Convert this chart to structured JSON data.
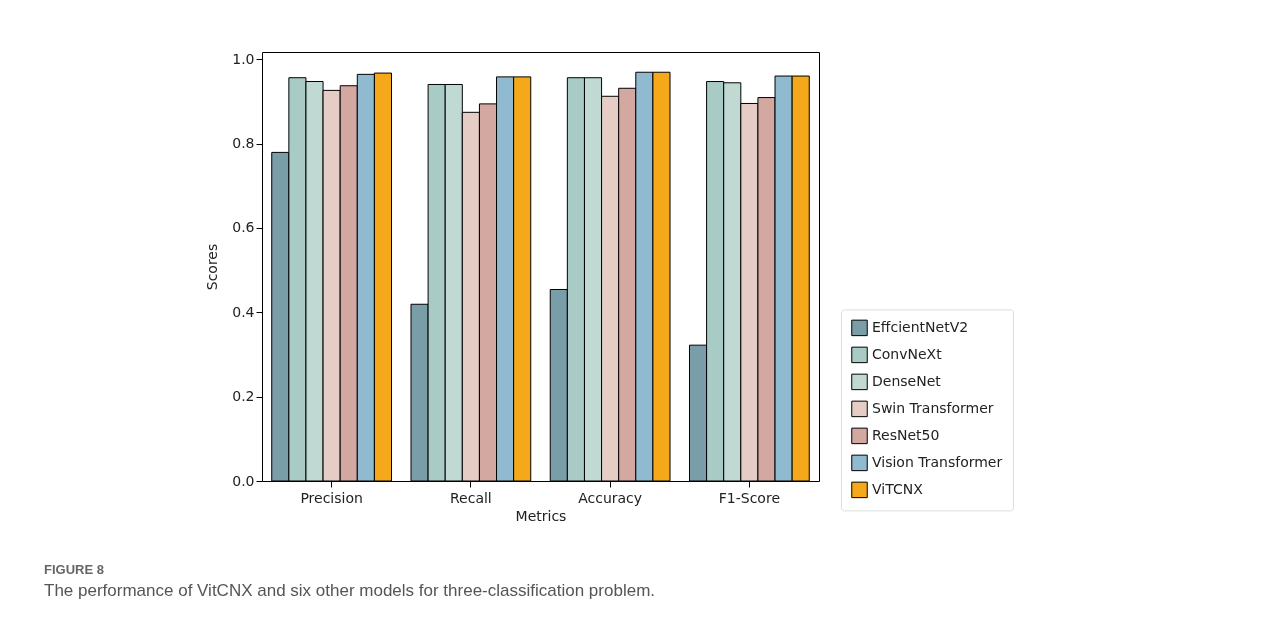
{
  "chart_data": {
    "type": "bar",
    "xlabel": "Metrics",
    "ylabel": "Scores",
    "categories": [
      "Precision",
      "Recall",
      "Accuracy",
      "F1-Score"
    ],
    "series": [
      {
        "name": "EffcientNetV2",
        "color": "#7a9ea8",
        "values": [
          0.779,
          0.419,
          0.454,
          0.322
        ]
      },
      {
        "name": "ConvNeXt",
        "color": "#a8cbc5",
        "values": [
          0.956,
          0.94,
          0.956,
          0.947
        ]
      },
      {
        "name": "DenseNet",
        "color": "#c0dad3",
        "values": [
          0.947,
          0.94,
          0.956,
          0.944
        ]
      },
      {
        "name": "Swin Transformer",
        "color": "#e5cdc6",
        "values": [
          0.926,
          0.874,
          0.912,
          0.895
        ]
      },
      {
        "name": "ResNet50",
        "color": "#d3a8a1",
        "values": [
          0.937,
          0.894,
          0.931,
          0.909
        ]
      },
      {
        "name": "Vision Transformer",
        "color": "#8fbad0",
        "values": [
          0.964,
          0.958,
          0.969,
          0.96
        ]
      },
      {
        "name": "ViTCNX",
        "color": "#f5a81a",
        "values": [
          0.967,
          0.958,
          0.969,
          0.96
        ]
      }
    ],
    "ylim": [
      0,
      1.017
    ],
    "yticks": [
      {
        "value": 0,
        "label": "0.0"
      },
      0.2,
      0.4,
      0.6,
      0.8,
      {
        "value": 1,
        "label": "1.0"
      }
    ],
    "grid": false,
    "legend": "right",
    "annotations": [
      "FIGURE 8",
      "The performance of VitCNX and six other models for three-classification problem."
    ]
  }
}
